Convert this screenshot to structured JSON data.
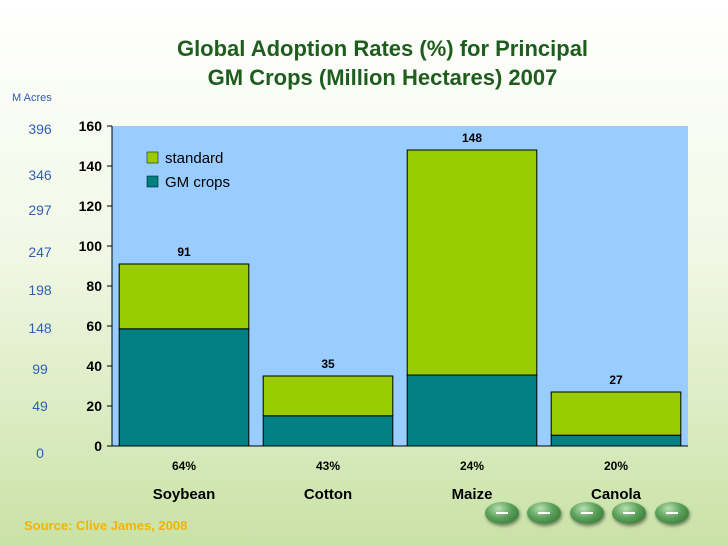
{
  "slide": {
    "title_line1": "Global Adoption Rates (%) for Principal",
    "title_line2": "GM Crops (Million Hectares) 2007",
    "secondary_axis_label": "M Acres",
    "secondary_axis_ticks": [
      "0",
      "49",
      "99",
      "148",
      "198",
      "247",
      "297",
      "346",
      "396"
    ],
    "source": "Source: Clive James, 2008"
  },
  "chart_data": {
    "type": "bar",
    "stacked": true,
    "categories": [
      "Soybean",
      "Cotton",
      "Maize",
      "Canola"
    ],
    "adoption_rates": [
      "64%",
      "43%",
      "24%",
      "20%"
    ],
    "series": [
      {
        "name": "GM crops",
        "values": [
          58.6,
          15.1,
          35.5,
          5.4
        ],
        "color": "#008080"
      },
      {
        "name": "standard",
        "values": [
          32.4,
          19.9,
          112.5,
          21.6
        ],
        "color": "#99cc00"
      }
    ],
    "totals": [
      91,
      35,
      148,
      27
    ],
    "total_labels": [
      "91",
      "35",
      "148",
      "27"
    ],
    "ylim": [
      0,
      160
    ],
    "yticks": [
      0,
      20,
      40,
      60,
      80,
      100,
      120,
      140,
      160
    ],
    "ytick_labels": [
      "0",
      "20",
      "40",
      "60",
      "80",
      "100",
      "120",
      "140",
      "160"
    ],
    "plot_background": "#99ccff",
    "grid": false,
    "legend": "top-left",
    "legend_order": [
      "standard",
      "GM crops"
    ]
  },
  "navigation": {
    "icons": [
      "nav-button-icon",
      "nav-button-icon",
      "nav-button-icon",
      "nav-button-icon",
      "nav-button-icon"
    ]
  }
}
